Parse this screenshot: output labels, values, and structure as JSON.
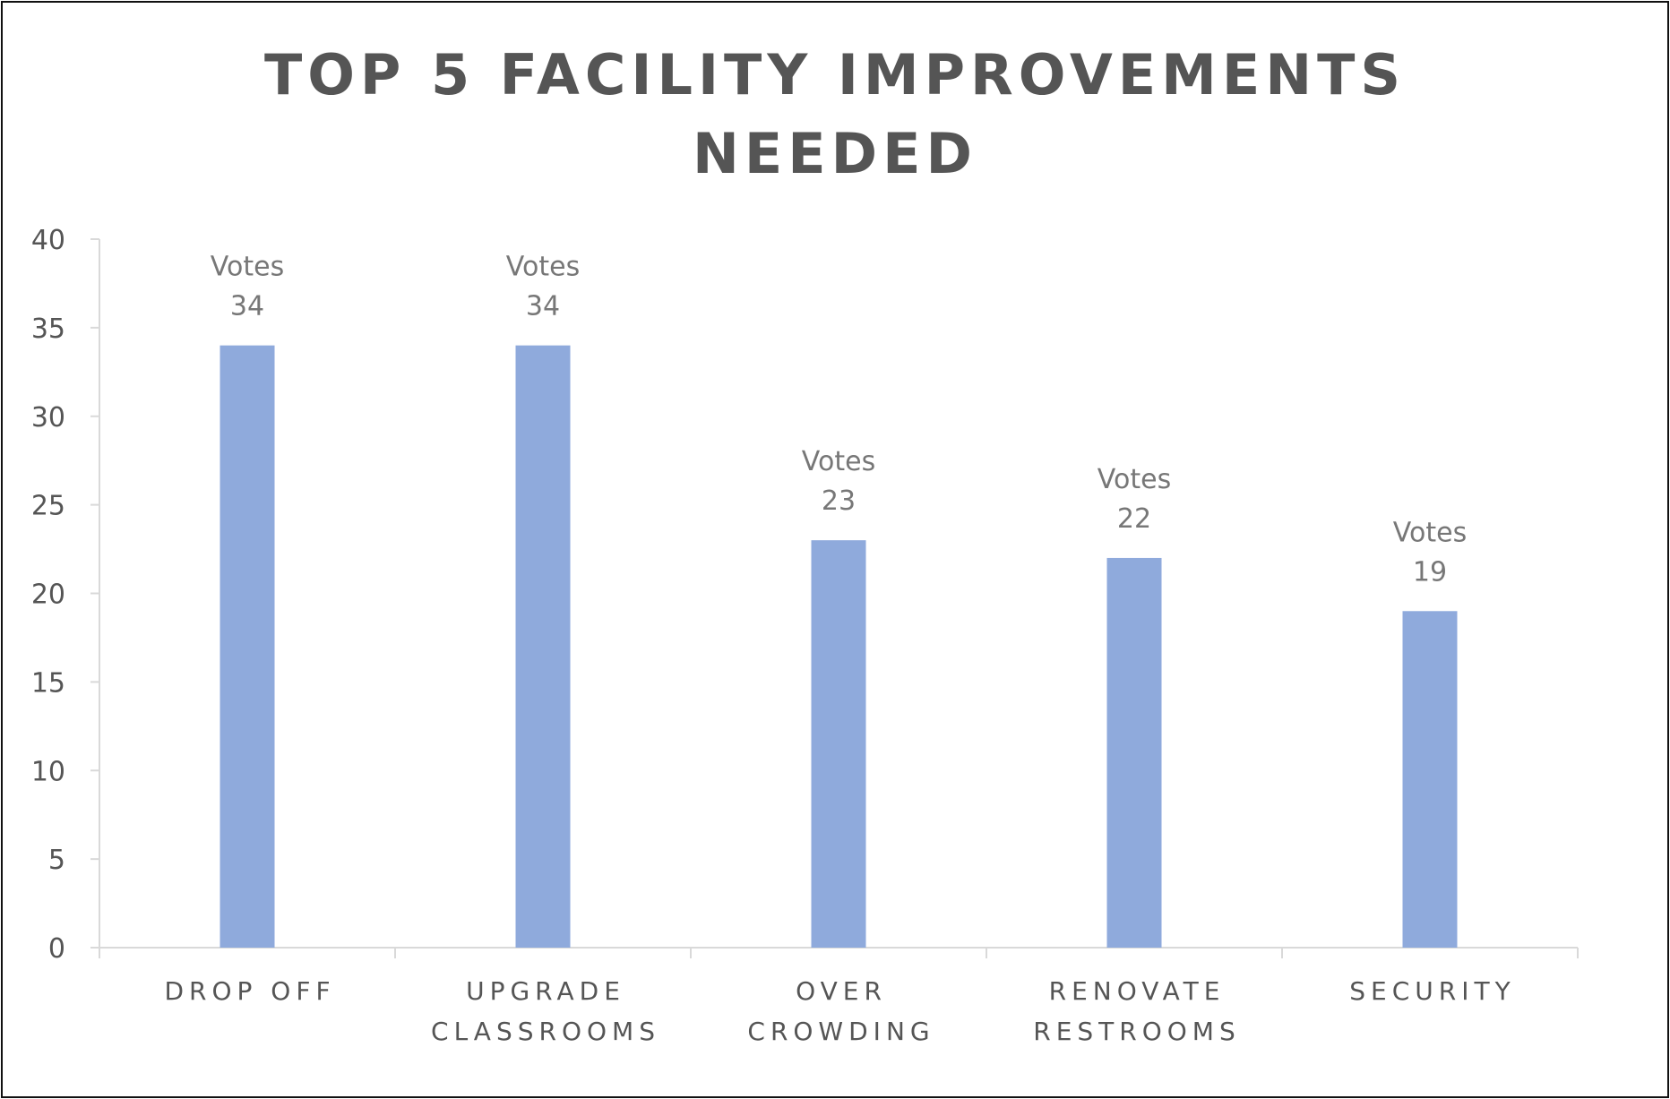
{
  "chart_data": {
    "type": "bar",
    "title": "TOP 5 FACILITY IMPROVEMENTS NEEDED",
    "title_lines": [
      "TOP 5 FACILITY IMPROVEMENTS",
      "NEEDED"
    ],
    "series_name": "Votes",
    "categories": [
      "DROP OFF",
      "UPGRADE CLASSROOMS",
      "OVER CROWDING",
      "RENOVATE RESTROOMS",
      "SECURITY"
    ],
    "category_lines": [
      [
        "DROP OFF"
      ],
      [
        "UPGRADE",
        "CLASSROOMS"
      ],
      [
        "OVER",
        "CROWDING"
      ],
      [
        "RENOVATE",
        "RESTROOMS"
      ],
      [
        "SECURITY"
      ]
    ],
    "values": [
      34,
      34,
      23,
      22,
      19
    ],
    "ylim": [
      0,
      40
    ],
    "yticks": [
      0,
      5,
      10,
      15,
      20,
      25,
      30,
      35,
      40
    ],
    "xlabel": "",
    "ylabel": "",
    "grid": false,
    "legend": "none",
    "bar_color": "#8FAADC",
    "axis_color": "#D9D9D9"
  }
}
